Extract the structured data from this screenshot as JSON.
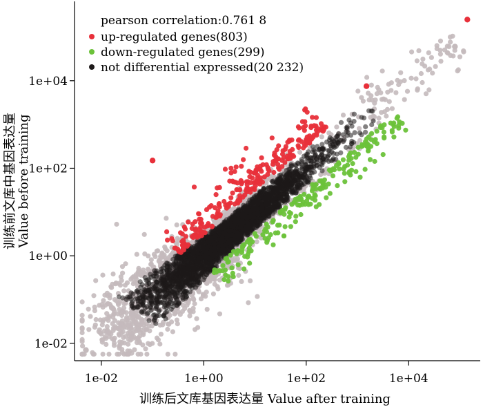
{
  "chart_data": {
    "type": "scatter",
    "title": "",
    "xlabel": "训练后文库基因表达量 Value after training",
    "ylabel_line1": "训练前文库中基因表达量",
    "ylabel_line2": "Value before training",
    "x_scale": "log10",
    "y_scale": "log10",
    "xlim": [
      0.003,
      250000
    ],
    "ylim": [
      0.004,
      650000
    ],
    "x_ticks": [
      0.01,
      1,
      100,
      10000
    ],
    "x_tick_labels": [
      "1e-02",
      "1e+00",
      "1e+02",
      "1e+04"
    ],
    "y_ticks": [
      0.01,
      1,
      100,
      10000
    ],
    "y_tick_labels": [
      "1e-02",
      "1e+00",
      "1e+02",
      "1e+04"
    ],
    "grid": false,
    "legend_position": "top-left",
    "correlation_text": "pearson correlation:0.761 8",
    "series": [
      {
        "name": "up-regulated genes(803)",
        "color": "#e8303a",
        "count": 803
      },
      {
        "name": "down-regulated genes(299)",
        "color": "#6cc23a",
        "count": 299
      },
      {
        "name": "not differential expressed(20 232)",
        "color": "#1e1a1a",
        "count": 20232
      }
    ],
    "outlier_color": "#c4babc",
    "highlighted_points": [
      {
        "series": "up-regulated genes(803)",
        "x": 140000,
        "y": 250000
      },
      {
        "series": "up-regulated genes(803)",
        "x": 1500,
        "y": 7500
      },
      {
        "series": "up-regulated genes(803)",
        "x": 0.1,
        "y": 150
      },
      {
        "series": "not differential expressed(20 232)",
        "x": 0.005,
        "y": 0.007
      },
      {
        "series": "not differential expressed(20 232)",
        "x": 80000,
        "y": 60000
      }
    ]
  }
}
